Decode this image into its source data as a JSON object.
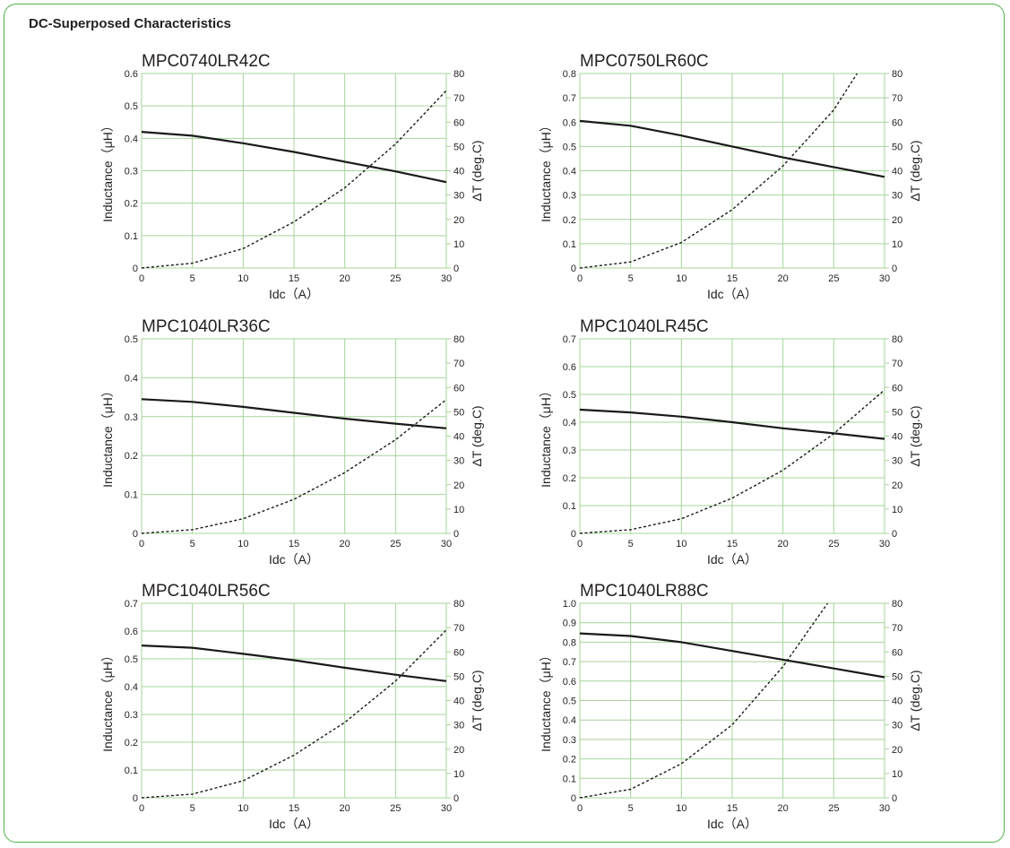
{
  "page_title": "DC-Superposed Characteristics",
  "colors": {
    "border": "#4fb04a",
    "grid": "#a6d49a",
    "text": "#231f20"
  },
  "chart_data": [
    {
      "type": "line",
      "title": "MPC0740LR42C",
      "xlabel": "Idc（A）",
      "ylabel": "Inductance（μH）",
      "y2label": "ΔT (deg.C)",
      "xlim": [
        0,
        30
      ],
      "ylim": [
        0,
        0.6
      ],
      "y2lim": [
        0,
        80
      ],
      "xticks": [
        "0",
        "5",
        "10",
        "15",
        "20",
        "25",
        "30"
      ],
      "yticks": [
        "0",
        "0.1",
        "0.2",
        "0.3",
        "0.4",
        "0.5",
        "0.6"
      ],
      "y2ticks": [
        "0",
        "10",
        "20",
        "30",
        "40",
        "50",
        "60",
        "70",
        "80"
      ],
      "grid": true,
      "series": [
        {
          "axis": "left",
          "style": "solid",
          "x": [
            0,
            5,
            10,
            15,
            20,
            25,
            30
          ],
          "y": [
            0.42,
            0.408,
            0.385,
            0.358,
            0.328,
            0.298,
            0.265
          ]
        },
        {
          "axis": "right",
          "style": "dashed",
          "x": [
            0,
            5,
            10,
            15,
            20,
            25,
            30
          ],
          "y": [
            0,
            2,
            8,
            19,
            33,
            51,
            73
          ]
        }
      ]
    },
    {
      "type": "line",
      "title": "MPC0750LR60C",
      "xlabel": "Idc（A）",
      "ylabel": "Inductance（μH）",
      "y2label": "ΔT (deg.C)",
      "xlim": [
        0,
        30
      ],
      "ylim": [
        0,
        0.8
      ],
      "y2lim": [
        0,
        80
      ],
      "xticks": [
        "0",
        "5",
        "10",
        "15",
        "20",
        "25",
        "30"
      ],
      "yticks": [
        "0",
        "0.1",
        "0.2",
        "0.3",
        "0.4",
        "0.5",
        "0.6",
        "0.7",
        "0.8"
      ],
      "y2ticks": [
        "0",
        "10",
        "20",
        "30",
        "40",
        "50",
        "60",
        "70",
        "80"
      ],
      "grid": true,
      "series": [
        {
          "axis": "left",
          "style": "solid",
          "x": [
            0,
            5,
            10,
            15,
            20,
            25,
            30
          ],
          "y": [
            0.605,
            0.585,
            0.545,
            0.5,
            0.455,
            0.415,
            0.375
          ]
        },
        {
          "axis": "right",
          "style": "dashed",
          "x": [
            0,
            5,
            10,
            15,
            20,
            25,
            27.3
          ],
          "y": [
            0,
            2.5,
            10.5,
            24,
            42,
            65,
            80
          ]
        }
      ]
    },
    {
      "type": "line",
      "title": "MPC1040LR36C",
      "xlabel": "Idc（A）",
      "ylabel": "Inductance（μH）",
      "y2label": "ΔT (deg.C)",
      "xlim": [
        0,
        30
      ],
      "ylim": [
        0,
        0.5
      ],
      "y2lim": [
        0,
        80
      ],
      "xticks": [
        "0",
        "5",
        "10",
        "15",
        "20",
        "25",
        "30"
      ],
      "yticks": [
        "0",
        "0.1",
        "0.2",
        "0.3",
        "0.4",
        "0.5"
      ],
      "y2ticks": [
        "0",
        "10",
        "20",
        "30",
        "40",
        "50",
        "60",
        "70",
        "80"
      ],
      "grid": true,
      "series": [
        {
          "axis": "left",
          "style": "solid",
          "x": [
            0,
            5,
            10,
            15,
            20,
            25,
            30
          ],
          "y": [
            0.345,
            0.338,
            0.325,
            0.31,
            0.295,
            0.282,
            0.27
          ]
        },
        {
          "axis": "right",
          "style": "dashed",
          "x": [
            0,
            5,
            10,
            15,
            20,
            25,
            30
          ],
          "y": [
            0,
            1.5,
            6,
            14,
            25,
            38.5,
            55
          ]
        }
      ]
    },
    {
      "type": "line",
      "title": "MPC1040LR45C",
      "xlabel": "Idc（A）",
      "ylabel": "Inductance（μH）",
      "y2label": "ΔT (deg.C)",
      "xlim": [
        0,
        30
      ],
      "ylim": [
        0,
        0.7
      ],
      "y2lim": [
        0,
        80
      ],
      "xticks": [
        "0",
        "5",
        "10",
        "15",
        "20",
        "25",
        "30"
      ],
      "yticks": [
        "0",
        "0.1",
        "0.2",
        "0.3",
        "0.4",
        "0.5",
        "0.6",
        "0.7"
      ],
      "y2ticks": [
        "0",
        "10",
        "20",
        "30",
        "40",
        "50",
        "60",
        "70",
        "80"
      ],
      "grid": true,
      "series": [
        {
          "axis": "left",
          "style": "solid",
          "x": [
            0,
            5,
            10,
            15,
            20,
            25,
            30
          ],
          "y": [
            0.445,
            0.435,
            0.42,
            0.4,
            0.378,
            0.36,
            0.34
          ]
        },
        {
          "axis": "right",
          "style": "dashed",
          "x": [
            0,
            5,
            10,
            15,
            20,
            25,
            30
          ],
          "y": [
            0,
            1.5,
            6,
            14.5,
            26,
            41,
            59
          ]
        }
      ]
    },
    {
      "type": "line",
      "title": "MPC1040LR56C",
      "xlabel": "Idc（A）",
      "ylabel": "Inductance（μH）",
      "y2label": "ΔT (deg.C)",
      "xlim": [
        0,
        30
      ],
      "ylim": [
        0,
        0.7
      ],
      "y2lim": [
        0,
        80
      ],
      "xticks": [
        "0",
        "5",
        "10",
        "15",
        "20",
        "25",
        "30"
      ],
      "yticks": [
        "0",
        "0.1",
        "0.2",
        "0.3",
        "0.4",
        "0.5",
        "0.6",
        "0.7"
      ],
      "y2ticks": [
        "0",
        "10",
        "20",
        "30",
        "40",
        "50",
        "60",
        "70",
        "80"
      ],
      "grid": true,
      "series": [
        {
          "axis": "left",
          "style": "solid",
          "x": [
            0,
            5,
            10,
            15,
            20,
            25,
            30
          ],
          "y": [
            0.548,
            0.54,
            0.518,
            0.495,
            0.468,
            0.443,
            0.42
          ]
        },
        {
          "axis": "right",
          "style": "dashed",
          "x": [
            0,
            5,
            10,
            15,
            20,
            25,
            30
          ],
          "y": [
            0,
            1.5,
            7,
            17.5,
            31,
            48,
            69
          ]
        }
      ]
    },
    {
      "type": "line",
      "title": "MPC1040LR88C",
      "xlabel": "Idc（A）",
      "ylabel": "Inductance（μH）",
      "y2label": "ΔT (deg.C)",
      "xlim": [
        0,
        30
      ],
      "ylim": [
        0,
        1.0
      ],
      "y2lim": [
        0,
        80
      ],
      "xticks": [
        "0",
        "5",
        "10",
        "15",
        "20",
        "25",
        "30"
      ],
      "yticks": [
        "0",
        "0.1",
        "0.2",
        "0.3",
        "0.4",
        "0.5",
        "0.6",
        "0.7",
        "0.8",
        "0.9",
        "1.0"
      ],
      "y2ticks": [
        "0",
        "10",
        "20",
        "30",
        "40",
        "50",
        "60",
        "70",
        "80"
      ],
      "grid": true,
      "series": [
        {
          "axis": "left",
          "style": "solid",
          "x": [
            0,
            5,
            10,
            15,
            20,
            25,
            30
          ],
          "y": [
            0.845,
            0.832,
            0.8,
            0.755,
            0.71,
            0.665,
            0.62
          ]
        },
        {
          "axis": "right",
          "style": "dashed",
          "x": [
            0,
            5,
            10,
            15,
            20,
            24.4
          ],
          "y": [
            0,
            3.5,
            14,
            30,
            54,
            80
          ]
        }
      ]
    }
  ]
}
